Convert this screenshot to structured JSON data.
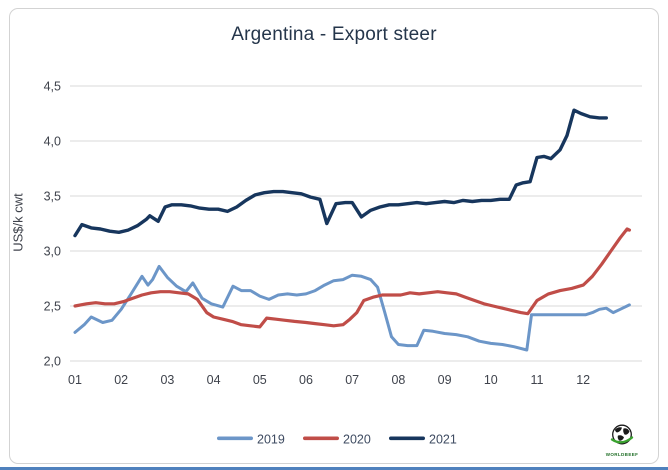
{
  "chart_data": {
    "type": "line",
    "title": "Argentina - Export steer",
    "ylabel": "US$/k cwt",
    "xlabel": "",
    "x_unit": "month of year",
    "decimal_separator": ",",
    "ylim": [
      2.0,
      4.5
    ],
    "xlim": [
      1,
      13.1
    ],
    "grid": "horizontal",
    "grid_color": "#d9d9d9",
    "legend_position": "bottom-center",
    "y_ticks": [
      {
        "label": "4,5",
        "v": 4.5
      },
      {
        "label": "4,0",
        "v": 4.0
      },
      {
        "label": "3,5",
        "v": 3.5
      },
      {
        "label": "3,0",
        "v": 3.0
      },
      {
        "label": "2,5",
        "v": 2.5
      },
      {
        "label": "2,0",
        "v": 2.0
      }
    ],
    "x_ticks": [
      {
        "label": "01",
        "v": 1
      },
      {
        "label": "02",
        "v": 2
      },
      {
        "label": "03",
        "v": 3
      },
      {
        "label": "04",
        "v": 4
      },
      {
        "label": "05",
        "v": 5
      },
      {
        "label": "06",
        "v": 6
      },
      {
        "label": "07",
        "v": 7
      },
      {
        "label": "08",
        "v": 8
      },
      {
        "label": "09",
        "v": 9
      },
      {
        "label": "10",
        "v": 10
      },
      {
        "label": "11",
        "v": 11
      },
      {
        "label": "12",
        "v": 12
      }
    ],
    "series": [
      {
        "name": "2019",
        "color": "#6C96C8",
        "points": [
          [
            1.0,
            2.26
          ],
          [
            1.2,
            2.33
          ],
          [
            1.35,
            2.4
          ],
          [
            1.6,
            2.35
          ],
          [
            1.8,
            2.37
          ],
          [
            2.0,
            2.47
          ],
          [
            2.2,
            2.6
          ],
          [
            2.45,
            2.77
          ],
          [
            2.58,
            2.69
          ],
          [
            2.68,
            2.74
          ],
          [
            2.82,
            2.86
          ],
          [
            3.0,
            2.76
          ],
          [
            3.2,
            2.68
          ],
          [
            3.4,
            2.63
          ],
          [
            3.55,
            2.71
          ],
          [
            3.75,
            2.57
          ],
          [
            3.95,
            2.52
          ],
          [
            4.2,
            2.49
          ],
          [
            4.42,
            2.68
          ],
          [
            4.6,
            2.64
          ],
          [
            4.8,
            2.64
          ],
          [
            5.0,
            2.59
          ],
          [
            5.2,
            2.56
          ],
          [
            5.4,
            2.6
          ],
          [
            5.6,
            2.61
          ],
          [
            5.8,
            2.6
          ],
          [
            6.0,
            2.61
          ],
          [
            6.2,
            2.64
          ],
          [
            6.4,
            2.69
          ],
          [
            6.6,
            2.73
          ],
          [
            6.8,
            2.74
          ],
          [
            7.0,
            2.78
          ],
          [
            7.2,
            2.77
          ],
          [
            7.4,
            2.74
          ],
          [
            7.55,
            2.67
          ],
          [
            7.7,
            2.45
          ],
          [
            7.85,
            2.22
          ],
          [
            8.0,
            2.15
          ],
          [
            8.2,
            2.14
          ],
          [
            8.4,
            2.14
          ],
          [
            8.55,
            2.28
          ],
          [
            8.75,
            2.27
          ],
          [
            9.0,
            2.25
          ],
          [
            9.25,
            2.24
          ],
          [
            9.5,
            2.22
          ],
          [
            9.75,
            2.18
          ],
          [
            10.0,
            2.16
          ],
          [
            10.25,
            2.15
          ],
          [
            10.5,
            2.13
          ],
          [
            10.78,
            2.1
          ],
          [
            10.88,
            2.42
          ],
          [
            11.2,
            2.42
          ],
          [
            11.5,
            2.42
          ],
          [
            11.8,
            2.42
          ],
          [
            12.05,
            2.42
          ],
          [
            12.2,
            2.44
          ],
          [
            12.35,
            2.47
          ],
          [
            12.5,
            2.48
          ],
          [
            12.65,
            2.44
          ],
          [
            12.8,
            2.47
          ],
          [
            13.0,
            2.51
          ]
        ]
      },
      {
        "name": "2020",
        "color": "#C04D48",
        "points": [
          [
            1.0,
            2.5
          ],
          [
            1.25,
            2.52
          ],
          [
            1.45,
            2.53
          ],
          [
            1.65,
            2.52
          ],
          [
            1.85,
            2.52
          ],
          [
            2.05,
            2.54
          ],
          [
            2.25,
            2.57
          ],
          [
            2.45,
            2.6
          ],
          [
            2.65,
            2.62
          ],
          [
            2.85,
            2.63
          ],
          [
            3.05,
            2.63
          ],
          [
            3.25,
            2.62
          ],
          [
            3.45,
            2.61
          ],
          [
            3.65,
            2.56
          ],
          [
            3.85,
            2.44
          ],
          [
            4.0,
            2.4
          ],
          [
            4.2,
            2.38
          ],
          [
            4.4,
            2.36
          ],
          [
            4.6,
            2.33
          ],
          [
            4.8,
            2.32
          ],
          [
            5.0,
            2.31
          ],
          [
            5.15,
            2.39
          ],
          [
            5.35,
            2.38
          ],
          [
            5.55,
            2.37
          ],
          [
            5.75,
            2.36
          ],
          [
            6.0,
            2.35
          ],
          [
            6.2,
            2.34
          ],
          [
            6.4,
            2.33
          ],
          [
            6.6,
            2.32
          ],
          [
            6.8,
            2.33
          ],
          [
            6.95,
            2.38
          ],
          [
            7.1,
            2.44
          ],
          [
            7.25,
            2.55
          ],
          [
            7.45,
            2.58
          ],
          [
            7.65,
            2.6
          ],
          [
            7.85,
            2.6
          ],
          [
            8.05,
            2.6
          ],
          [
            8.25,
            2.62
          ],
          [
            8.45,
            2.61
          ],
          [
            8.65,
            2.62
          ],
          [
            8.85,
            2.63
          ],
          [
            9.05,
            2.62
          ],
          [
            9.25,
            2.61
          ],
          [
            9.45,
            2.58
          ],
          [
            9.65,
            2.55
          ],
          [
            9.85,
            2.52
          ],
          [
            10.05,
            2.5
          ],
          [
            10.25,
            2.48
          ],
          [
            10.45,
            2.46
          ],
          [
            10.65,
            2.44
          ],
          [
            10.8,
            2.43
          ],
          [
            11.0,
            2.55
          ],
          [
            11.25,
            2.61
          ],
          [
            11.5,
            2.64
          ],
          [
            11.75,
            2.66
          ],
          [
            12.0,
            2.69
          ],
          [
            12.2,
            2.77
          ],
          [
            12.4,
            2.88
          ],
          [
            12.6,
            3.0
          ],
          [
            12.8,
            3.12
          ],
          [
            12.95,
            3.2
          ],
          [
            13.0,
            3.19
          ]
        ]
      },
      {
        "name": "2021",
        "color": "#17365D",
        "points": [
          [
            1.0,
            3.14
          ],
          [
            1.15,
            3.24
          ],
          [
            1.35,
            3.21
          ],
          [
            1.55,
            3.2
          ],
          [
            1.75,
            3.18
          ],
          [
            1.95,
            3.17
          ],
          [
            2.15,
            3.19
          ],
          [
            2.35,
            3.23
          ],
          [
            2.55,
            3.29
          ],
          [
            2.62,
            3.32
          ],
          [
            2.8,
            3.27
          ],
          [
            2.95,
            3.4
          ],
          [
            3.1,
            3.42
          ],
          [
            3.3,
            3.42
          ],
          [
            3.5,
            3.41
          ],
          [
            3.7,
            3.39
          ],
          [
            3.9,
            3.38
          ],
          [
            4.1,
            3.38
          ],
          [
            4.3,
            3.36
          ],
          [
            4.5,
            3.4
          ],
          [
            4.7,
            3.46
          ],
          [
            4.9,
            3.51
          ],
          [
            5.1,
            3.53
          ],
          [
            5.3,
            3.54
          ],
          [
            5.5,
            3.54
          ],
          [
            5.7,
            3.53
          ],
          [
            5.9,
            3.52
          ],
          [
            6.1,
            3.49
          ],
          [
            6.3,
            3.47
          ],
          [
            6.45,
            3.25
          ],
          [
            6.65,
            3.43
          ],
          [
            6.85,
            3.44
          ],
          [
            7.0,
            3.44
          ],
          [
            7.2,
            3.31
          ],
          [
            7.4,
            3.37
          ],
          [
            7.6,
            3.4
          ],
          [
            7.8,
            3.42
          ],
          [
            8.0,
            3.42
          ],
          [
            8.2,
            3.43
          ],
          [
            8.4,
            3.44
          ],
          [
            8.6,
            3.43
          ],
          [
            8.8,
            3.44
          ],
          [
            9.0,
            3.45
          ],
          [
            9.2,
            3.44
          ],
          [
            9.4,
            3.46
          ],
          [
            9.6,
            3.45
          ],
          [
            9.8,
            3.46
          ],
          [
            10.0,
            3.46
          ],
          [
            10.2,
            3.47
          ],
          [
            10.4,
            3.47
          ],
          [
            10.55,
            3.6
          ],
          [
            10.7,
            3.62
          ],
          [
            10.85,
            3.63
          ],
          [
            11.0,
            3.85
          ],
          [
            11.15,
            3.86
          ],
          [
            11.3,
            3.84
          ],
          [
            11.5,
            3.92
          ],
          [
            11.65,
            4.05
          ],
          [
            11.8,
            4.28
          ],
          [
            11.95,
            4.25
          ],
          [
            12.15,
            4.22
          ],
          [
            12.35,
            4.21
          ],
          [
            12.5,
            4.21
          ]
        ]
      }
    ]
  },
  "logo": {
    "text": "WORLDBEEF",
    "accent_green": "#3aa32f"
  }
}
